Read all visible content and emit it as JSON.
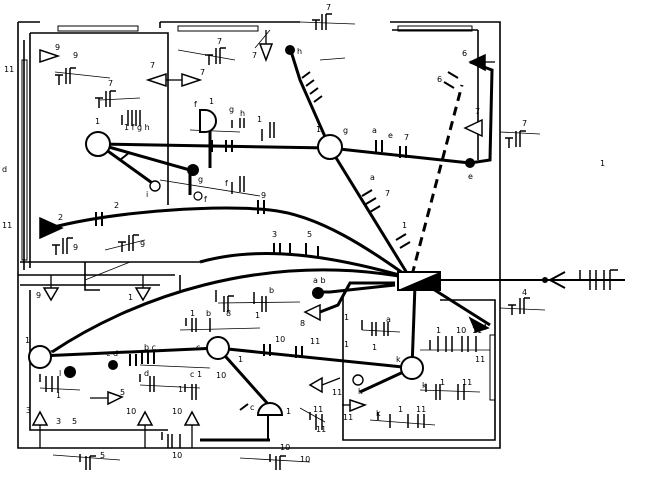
{
  "title": "",
  "labels": {
    "t7a": "7",
    "t9a": "9",
    "t11a": "11",
    "t7b": "7",
    "t7c": "7",
    "t7d": "7",
    "t7e": "7",
    "th": "h",
    "t6a": "6",
    "t6b": "6",
    "t7f": "7",
    "t7g": "7",
    "t1a": "1",
    "t1fgh": "1  f g h",
    "tf": "f",
    "t1b": "1",
    "tg": "g",
    "th2": "h",
    "t1c": "1",
    "tga": "g",
    "ta": "a",
    "te": "e",
    "t7h": "7",
    "tgnode": "g",
    "tf2": "f",
    "ti": "i",
    "tf3": "f",
    "t7i": "7",
    "te2": "e",
    "td": "d",
    "t11b": "11",
    "t2a": "2",
    "t2b": "2",
    "ta2": "a",
    "t7j": "7",
    "t9b": "9",
    "t1d": "1",
    "t9c": "9",
    "t9d": "9",
    "t9e": "9",
    "t9f": "9",
    "t3a": "3",
    "t5a": "5",
    "tab": "a  b",
    "t1e": "1",
    "tb": "b",
    "t1f": "1",
    "tb2": "b",
    "t8a": "8",
    "t1g": "1",
    "t8b": "8",
    "t1h": "1",
    "ta3": "a",
    "t1i": "1",
    "t1j": "1",
    "t1k": "1",
    "t10a": "10",
    "t4a": "4",
    "t11c": "11",
    "t4b": "4",
    "t11d": "11",
    "tl": "l",
    "tcd": "c  d",
    "tb3": "b c",
    "t1l": "1",
    "tc": "c",
    "tl2": "l",
    "td2": "d",
    "t1m": "1",
    "t10b": "10",
    "t11e": "11",
    "tk": "k",
    "t1n": "1",
    "tc2": "c 1",
    "t10c": "10",
    "t1o": "1",
    "tc3": "c",
    "t1p": "1",
    "t11f": "11",
    "t11g": "11",
    "tk2": "k",
    "t11h": "11",
    "tk3": "k",
    "t1q": "1",
    "t11i": "11",
    "t11j": "11",
    "tk4": "k",
    "t1r": "1",
    "t11k": "11",
    "t3b": "3",
    "t3c": "3",
    "t5b": "5",
    "t5c": "5",
    "t10d": "10",
    "t10e": "10",
    "t10f": "10",
    "t5d": "5",
    "t10g": "10",
    "t10h": "10",
    "tfg": "1",
    "tl3": "l",
    "t1s": "1"
  }
}
